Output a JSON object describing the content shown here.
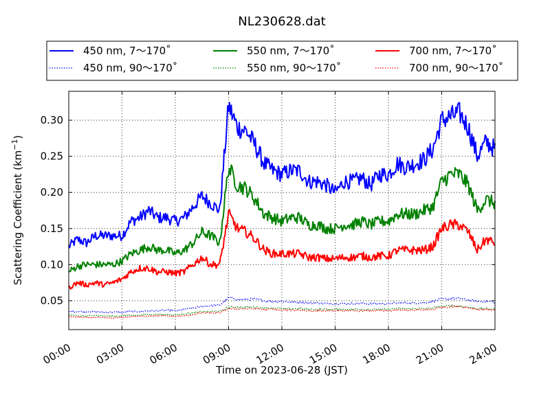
{
  "chart_data": {
    "type": "line",
    "title": "NL230628.dat",
    "xlabel": "Time on 2023-06-28 (JST)",
    "ylabel_main": "Scattering Coefficient (km",
    "ylabel_sup": "−1",
    "ylabel_close": ")",
    "x_unit": "hours",
    "xlim": [
      0,
      24
    ],
    "ylim": [
      0.01,
      0.34
    ],
    "x_ticks": [
      0,
      3,
      6,
      9,
      12,
      15,
      18,
      21,
      24
    ],
    "x_tick_labels": [
      "00:00",
      "03:00",
      "06:00",
      "09:00",
      "12:00",
      "15:00",
      "18:00",
      "21:00",
      "24:00"
    ],
    "y_ticks": [
      0.05,
      0.1,
      0.15,
      0.2,
      0.25,
      0.3
    ],
    "y_tick_labels": [
      "0.05",
      "0.10",
      "0.15",
      "0.20",
      "0.25",
      "0.30"
    ],
    "grid": true,
    "legend_placement": "top, above plot (3 columns)",
    "x": [
      0,
      0.5,
      1,
      1.5,
      2,
      2.5,
      3,
      3.5,
      4,
      4.5,
      5,
      5.5,
      6,
      6.5,
      7,
      7.5,
      8,
      8.5,
      9,
      9.5,
      10,
      10.5,
      11,
      11.5,
      12,
      12.5,
      13,
      13.5,
      14,
      14.5,
      15,
      15.5,
      16,
      16.5,
      17,
      17.5,
      18,
      18.5,
      19,
      19.5,
      20,
      20.5,
      21,
      21.5,
      22,
      22.5,
      23,
      23.5,
      24
    ],
    "series": [
      {
        "name": "450 nm, 7～170˚",
        "color": "#0000ff",
        "style": "solid",
        "values": [
          0.125,
          0.135,
          0.13,
          0.14,
          0.14,
          0.14,
          0.14,
          0.16,
          0.165,
          0.175,
          0.165,
          0.165,
          0.16,
          0.165,
          0.18,
          0.195,
          0.185,
          0.175,
          0.32,
          0.29,
          0.285,
          0.265,
          0.24,
          0.23,
          0.225,
          0.23,
          0.23,
          0.215,
          0.215,
          0.21,
          0.2,
          0.215,
          0.215,
          0.22,
          0.21,
          0.225,
          0.225,
          0.24,
          0.235,
          0.24,
          0.245,
          0.26,
          0.3,
          0.305,
          0.31,
          0.29,
          0.25,
          0.27,
          0.26
        ]
      },
      {
        "name": "450 nm, 90～170˚",
        "color": "#0000ff",
        "style": "dotted",
        "values": [
          0.035,
          0.035,
          0.035,
          0.035,
          0.034,
          0.034,
          0.034,
          0.035,
          0.035,
          0.036,
          0.036,
          0.037,
          0.036,
          0.038,
          0.04,
          0.042,
          0.043,
          0.044,
          0.054,
          0.052,
          0.052,
          0.052,
          0.05,
          0.049,
          0.049,
          0.048,
          0.048,
          0.047,
          0.047,
          0.046,
          0.046,
          0.046,
          0.046,
          0.046,
          0.046,
          0.046,
          0.046,
          0.047,
          0.047,
          0.047,
          0.047,
          0.049,
          0.052,
          0.053,
          0.053,
          0.051,
          0.049,
          0.049,
          0.048
        ]
      },
      {
        "name": "550 nm, 7～170˚",
        "color": "#008000",
        "style": "solid",
        "values": [
          0.09,
          0.098,
          0.1,
          0.1,
          0.1,
          0.1,
          0.105,
          0.115,
          0.12,
          0.125,
          0.12,
          0.12,
          0.115,
          0.12,
          0.13,
          0.145,
          0.14,
          0.13,
          0.235,
          0.21,
          0.205,
          0.19,
          0.17,
          0.165,
          0.16,
          0.165,
          0.165,
          0.155,
          0.155,
          0.15,
          0.15,
          0.155,
          0.155,
          0.16,
          0.155,
          0.16,
          0.16,
          0.17,
          0.17,
          0.17,
          0.175,
          0.18,
          0.215,
          0.225,
          0.225,
          0.21,
          0.175,
          0.19,
          0.185
        ]
      },
      {
        "name": "550 nm, 90～170˚",
        "color": "#008000",
        "style": "dotted",
        "values": [
          0.03,
          0.029,
          0.029,
          0.03,
          0.029,
          0.029,
          0.029,
          0.03,
          0.03,
          0.031,
          0.031,
          0.031,
          0.03,
          0.032,
          0.033,
          0.035,
          0.035,
          0.035,
          0.041,
          0.041,
          0.041,
          0.041,
          0.04,
          0.04,
          0.039,
          0.039,
          0.039,
          0.038,
          0.038,
          0.038,
          0.038,
          0.038,
          0.038,
          0.038,
          0.038,
          0.038,
          0.038,
          0.039,
          0.039,
          0.039,
          0.039,
          0.04,
          0.042,
          0.043,
          0.043,
          0.041,
          0.039,
          0.039,
          0.038
        ]
      },
      {
        "name": "700 nm, 7～170˚",
        "color": "#ff0000",
        "style": "solid",
        "values": [
          0.068,
          0.075,
          0.072,
          0.075,
          0.072,
          0.075,
          0.08,
          0.09,
          0.095,
          0.095,
          0.09,
          0.09,
          0.088,
          0.09,
          0.1,
          0.11,
          0.1,
          0.1,
          0.17,
          0.15,
          0.145,
          0.135,
          0.12,
          0.115,
          0.115,
          0.115,
          0.115,
          0.11,
          0.11,
          0.108,
          0.108,
          0.11,
          0.11,
          0.112,
          0.11,
          0.112,
          0.112,
          0.12,
          0.12,
          0.12,
          0.12,
          0.125,
          0.15,
          0.155,
          0.155,
          0.145,
          0.12,
          0.135,
          0.13
        ]
      },
      {
        "name": "700 nm, 90～170˚",
        "color": "#ff0000",
        "style": "dotted",
        "values": [
          0.028,
          0.027,
          0.027,
          0.027,
          0.026,
          0.026,
          0.027,
          0.028,
          0.028,
          0.029,
          0.029,
          0.029,
          0.028,
          0.029,
          0.031,
          0.033,
          0.033,
          0.033,
          0.039,
          0.039,
          0.039,
          0.039,
          0.038,
          0.038,
          0.037,
          0.037,
          0.037,
          0.036,
          0.036,
          0.036,
          0.036,
          0.036,
          0.036,
          0.036,
          0.036,
          0.036,
          0.036,
          0.037,
          0.037,
          0.037,
          0.037,
          0.038,
          0.041,
          0.042,
          0.042,
          0.04,
          0.038,
          0.038,
          0.037
        ]
      }
    ]
  }
}
